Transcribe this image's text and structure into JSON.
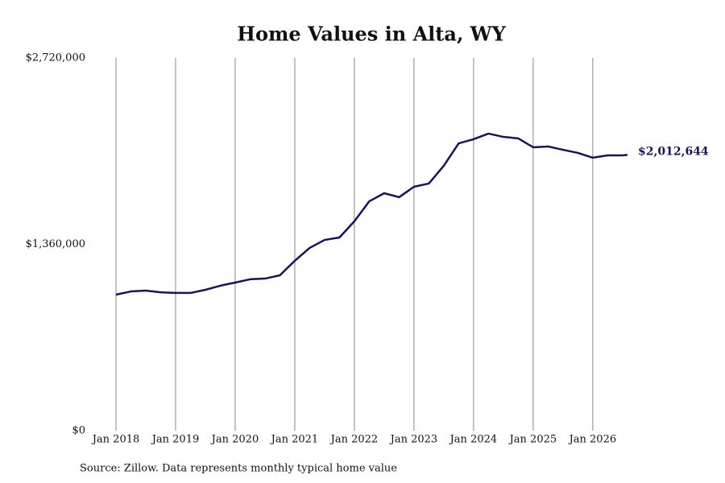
{
  "chart_data": {
    "type": "line",
    "title": "Home Values in Alta, WY",
    "source": "Source: Zillow. Data represents monthly typical home value",
    "x": [
      "2018-01",
      "2018-04",
      "2018-07",
      "2018-10",
      "2019-01",
      "2019-04",
      "2019-07",
      "2019-10",
      "2020-01",
      "2020-04",
      "2020-07",
      "2020-10",
      "2021-01",
      "2021-04",
      "2021-07",
      "2021-10",
      "2022-01",
      "2022-04",
      "2022-07",
      "2022-10",
      "2023-01",
      "2023-04",
      "2023-07",
      "2023-10",
      "2024-01",
      "2024-04",
      "2024-07",
      "2024-10",
      "2025-01",
      "2025-04",
      "2025-07",
      "2025-10",
      "2026-01",
      "2026-04",
      "2026-07",
      "2026-08"
    ],
    "series": [
      {
        "name": "Typical home value",
        "color": "#15155f",
        "values": [
          993000,
          1016000,
          1022000,
          1010000,
          1005000,
          1005000,
          1028000,
          1058000,
          1081000,
          1105000,
          1110000,
          1134000,
          1240000,
          1334000,
          1392000,
          1410000,
          1528000,
          1674000,
          1733000,
          1704000,
          1780000,
          1804000,
          1933000,
          2097000,
          2127000,
          2168000,
          2144000,
          2133000,
          2068000,
          2074000,
          2050000,
          2027000,
          1992000,
          2009000,
          2009000,
          2012644
        ]
      }
    ],
    "end_label": {
      "value": 2012644,
      "label": "$2,012,644"
    },
    "xlim": [
      "2018-01",
      "2026-08"
    ],
    "xticks": [
      {
        "value": "2018-01",
        "label": "Jan 2018"
      },
      {
        "value": "2019-01",
        "label": "Jan 2019"
      },
      {
        "value": "2020-01",
        "label": "Jan 2020"
      },
      {
        "value": "2021-01",
        "label": "Jan 2021"
      },
      {
        "value": "2022-01",
        "label": "Jan 2022"
      },
      {
        "value": "2023-01",
        "label": "Jan 2023"
      },
      {
        "value": "2024-01",
        "label": "Jan 2024"
      },
      {
        "value": "2025-01",
        "label": "Jan 2025"
      },
      {
        "value": "2026-01",
        "label": "Jan 2026"
      }
    ],
    "ylim": [
      0,
      2720000
    ],
    "yticks": [
      {
        "value": 0,
        "label": "$0"
      },
      {
        "value": 1360000,
        "label": "$1,360,000"
      },
      {
        "value": 2720000,
        "label": "$2,720,000"
      }
    ],
    "grid": "x"
  }
}
